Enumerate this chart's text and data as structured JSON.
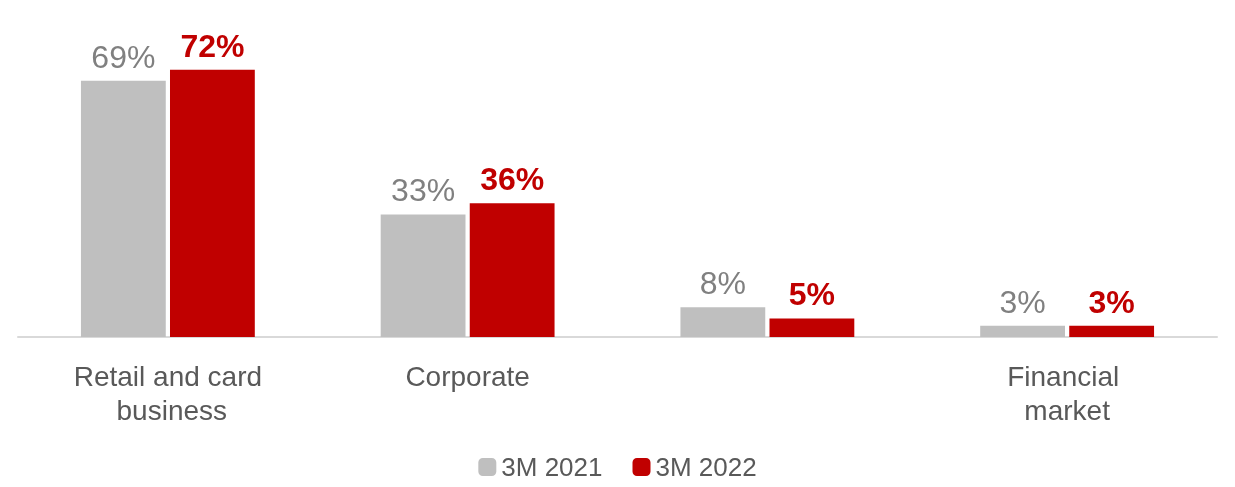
{
  "chart_data": {
    "type": "bar",
    "categories": [
      "Retail and card business",
      "Corporate",
      null,
      "Financial market"
    ],
    "series": [
      {
        "name": "3M 2021",
        "color": "#bfbfbf",
        "values": [
          69,
          33,
          8,
          3
        ],
        "value_labels": [
          "69%",
          "33%",
          "8%",
          "3%"
        ]
      },
      {
        "name": "3M 2022",
        "color": "#c00000",
        "values": [
          72,
          36,
          5,
          3
        ],
        "value_labels": [
          "72%",
          "36%",
          "5%",
          "3%"
        ]
      }
    ],
    "legend": "bottom"
  }
}
